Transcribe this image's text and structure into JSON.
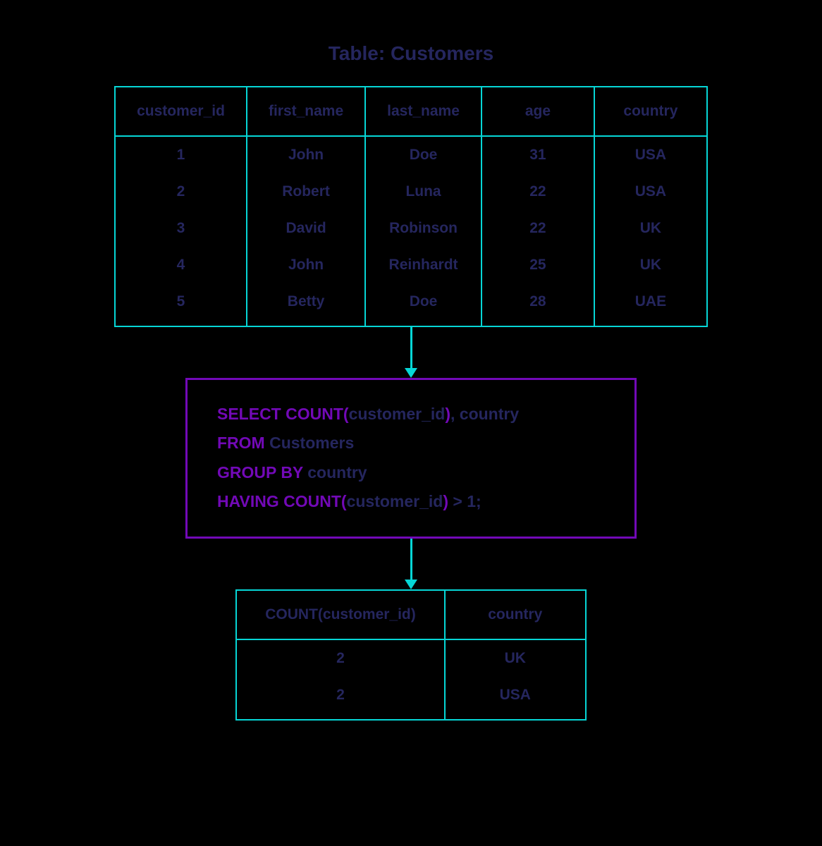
{
  "colors": {
    "background": "#000000",
    "text_dark": "#25265e",
    "text_purple": "#7209b7",
    "border_teal": "#06d6d6",
    "border_purple": "#7209b7"
  },
  "title": "Table: Customers",
  "input_table": {
    "columns": [
      "customer_id",
      "first_name",
      "last_name",
      "age",
      "country"
    ],
    "rows": [
      [
        "1",
        "John",
        "Doe",
        "31",
        "USA"
      ],
      [
        "2",
        "Robert",
        "Luna",
        "22",
        "USA"
      ],
      [
        "3",
        "David",
        "Robinson",
        "22",
        "UK"
      ],
      [
        "4",
        "John",
        "Reinhardt",
        "25",
        "UK"
      ],
      [
        "5",
        "Betty",
        "Doe",
        "28",
        "UAE"
      ]
    ]
  },
  "query": {
    "tokens": [
      [
        {
          "t": "SELECT COUNT(",
          "c": "kw"
        },
        {
          "t": "customer_id",
          "c": "txt"
        },
        {
          "t": ")",
          "c": "kw"
        },
        {
          "t": ", country",
          "c": "txt"
        }
      ],
      [
        {
          "t": "FROM ",
          "c": "kw"
        },
        {
          "t": "Customers",
          "c": "txt"
        }
      ],
      [
        {
          "t": "GROUP BY ",
          "c": "kw"
        },
        {
          "t": "country",
          "c": "txt"
        }
      ],
      [
        {
          "t": "HAVING COUNT(",
          "c": "kw"
        },
        {
          "t": "customer_id",
          "c": "txt"
        },
        {
          "t": ")",
          "c": "kw"
        },
        {
          "t": " > 1;",
          "c": "txt"
        }
      ]
    ]
  },
  "result_table": {
    "columns": [
      "COUNT(customer_id)",
      "country"
    ],
    "rows": [
      [
        "2",
        "UK"
      ],
      [
        "2",
        "USA"
      ]
    ]
  }
}
